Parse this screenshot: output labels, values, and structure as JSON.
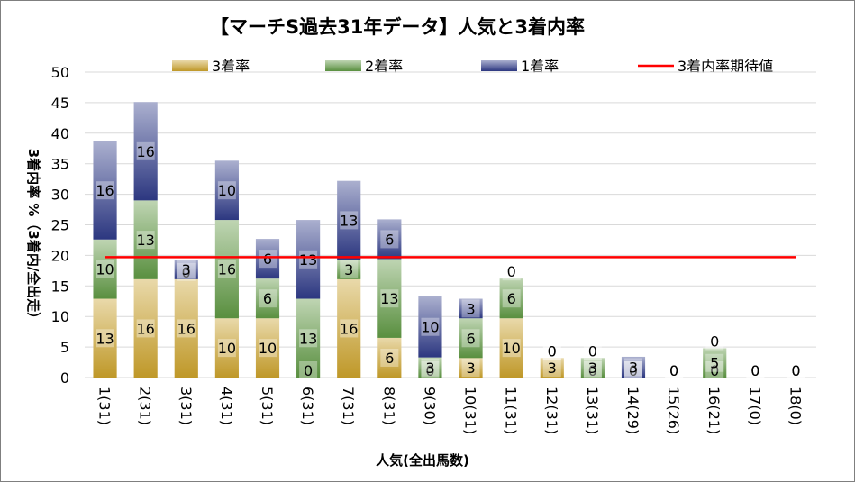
{
  "chart_data": {
    "type": "bar",
    "stacked": true,
    "title": "【マーチS過去31年データ】人気と3着内率",
    "xlabel": "人気(全出馬数)",
    "ylabel": "3着内率 %（3着内/全出走）",
    "ylim": [
      0,
      50
    ],
    "yticks": [
      0,
      5,
      10,
      15,
      20,
      25,
      30,
      35,
      40,
      45,
      50
    ],
    "grid": true,
    "legend_position": "top",
    "categories": [
      "1(31)",
      "2(31)",
      "3(31)",
      "4(31)",
      "5(31)",
      "6(31)",
      "7(31)",
      "8(31)",
      "9(30)",
      "10(31)",
      "11(31)",
      "12(31)",
      "13(31)",
      "14(29)",
      "15(26)",
      "16(21)",
      "17(0)",
      "18(0)"
    ],
    "series": [
      {
        "name": "3着率",
        "color": "#c9a02a",
        "values": [
          12.9,
          16.1,
          16.1,
          9.7,
          9.7,
          0,
          16.1,
          6.5,
          0,
          3.2,
          9.7,
          3.2,
          0,
          0,
          0,
          0,
          0,
          0
        ],
        "labels": [
          "13",
          "16",
          "16",
          "10",
          "10",
          "0",
          "16",
          "6",
          "0",
          "3",
          "10",
          "3",
          "0",
          "0",
          "0",
          "0",
          "0",
          "0"
        ]
      },
      {
        "name": "2着率",
        "color": "#5e9642",
        "values": [
          9.7,
          12.9,
          0,
          16.1,
          6.5,
          12.9,
          3.2,
          12.9,
          3.3,
          6.5,
          6.5,
          0,
          3.2,
          0,
          0,
          4.8,
          0,
          0
        ],
        "labels": [
          "10",
          "13",
          "0",
          "16",
          "6",
          "13",
          "3",
          "13",
          "3",
          "6",
          "6",
          "0",
          "3",
          "0",
          "0",
          "5",
          "0",
          "0"
        ]
      },
      {
        "name": "1着率",
        "color": "#2e3a87",
        "values": [
          16.1,
          16.1,
          3.2,
          9.7,
          6.5,
          12.9,
          12.9,
          6.5,
          10.0,
          3.2,
          0,
          0,
          0,
          3.4,
          0,
          0,
          0,
          0
        ],
        "labels": [
          "16",
          "16",
          "3",
          "10",
          "6",
          "13",
          "13",
          "6",
          "10",
          "3",
          "0",
          "0",
          "0",
          "3",
          "0",
          "0",
          "0",
          "0"
        ]
      },
      {
        "name": "3着内率期待値",
        "color": "#ff0000",
        "type": "line",
        "value": 19.7
      }
    ]
  }
}
